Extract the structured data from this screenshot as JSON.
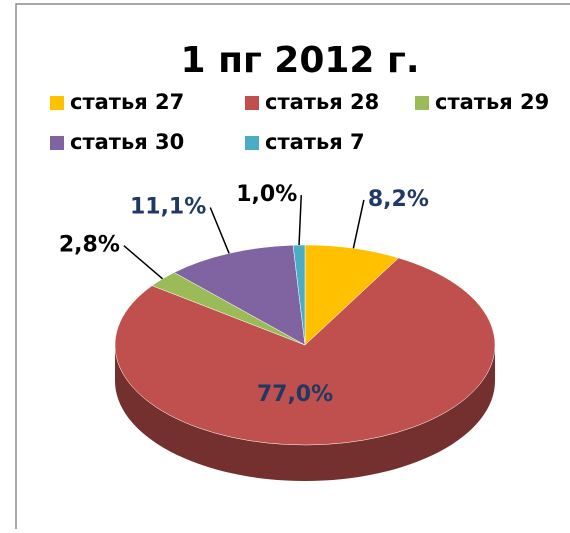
{
  "chart_data": {
    "type": "pie",
    "title": "1 пг 2012 г.",
    "categories": [
      "статья 27",
      "статья 28",
      "статья 29",
      "статья 30",
      "статья 7"
    ],
    "values": [
      8.2,
      77.0,
      2.8,
      11.1,
      1.0
    ],
    "value_labels": [
      "8,2%",
      "77,0%",
      "2,8%",
      "11,1%",
      "1,0%"
    ],
    "colors": [
      "#FFC000",
      "#C0504D",
      "#9BBB59",
      "#8064A2",
      "#4BACC6"
    ],
    "value_label_colors": [
      "#1F3864",
      "#1F3864",
      "#000000",
      "#1F3864",
      "#000000"
    ],
    "legend": "top"
  }
}
